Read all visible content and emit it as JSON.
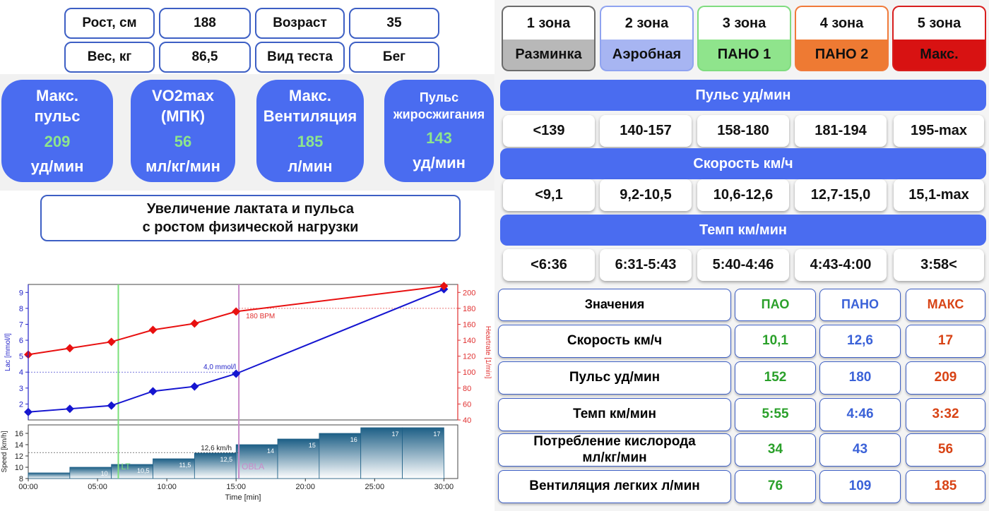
{
  "info": {
    "height_label": "Рост, см",
    "height_value": "188",
    "age_label": "Возраст",
    "age_value": "35",
    "weight_label": "Вес, кг",
    "weight_value": "86,5",
    "test_label": "Вид теста",
    "test_value": "Бег"
  },
  "stats": [
    {
      "title1": "Макс.",
      "title2": "пульс",
      "value": "209",
      "unit": "уд/мин"
    },
    {
      "title1": "VO2max",
      "title2": "(МПК)",
      "value": "56",
      "unit": "мл/кг/мин"
    },
    {
      "title1": "Макс.",
      "title2": "Вентиляция",
      "value": "185",
      "unit": "л/мин"
    },
    {
      "title1": "Пульс",
      "title2": "жиросжигания",
      "value": "143",
      "unit": "уд/мин"
    }
  ],
  "caption": {
    "line1": "Увеличение лактата и пульса",
    "line2": "с ростом физической нагрузки"
  },
  "zones": [
    {
      "label": "1 зона",
      "name": "Разминка",
      "border": "#6b6b6b",
      "fill": "#b8b8b8"
    },
    {
      "label": "2 зона",
      "name": "Аэробная",
      "border": "#8fa3f0",
      "fill": "#a7b5f2"
    },
    {
      "label": "3 зона",
      "name": "ПАНО 1",
      "border": "#7fdc7f",
      "fill": "#8fe48c"
    },
    {
      "label": "4 зона",
      "name": "ПАНО 2",
      "border": "#f07a3a",
      "fill": "#ee7a33"
    },
    {
      "label": "5 зона",
      "name": "Макс.",
      "border": "#d81e1e",
      "fill": "#d81212"
    }
  ],
  "bands": {
    "pulse": {
      "title": "Пульс уд/мин",
      "values": [
        "<139",
        "140-157",
        "158-180",
        "181-194",
        "195-max"
      ]
    },
    "speed": {
      "title": "Скорость км/ч",
      "values": [
        "<9,1",
        "9,2-10,5",
        "10,6-12,6",
        "12,7-15,0",
        "15,1-max"
      ]
    },
    "pace": {
      "title": "Темп км/мин",
      "values": [
        "<6:36",
        "6:31-5:43",
        "5:40-4:46",
        "4:43-4:00",
        "3:58<"
      ]
    }
  },
  "table": {
    "headers": [
      "Значения",
      "ПАО",
      "ПАНО",
      "МАКС"
    ],
    "rows": [
      {
        "label": "Скорость км/ч",
        "pao": "10,1",
        "pano": "12,6",
        "max": "17"
      },
      {
        "label": "Пульс уд/мин",
        "pao": "152",
        "pano": "180",
        "max": "209"
      },
      {
        "label": "Темп км/мин",
        "pao": "5:55",
        "pano": "4:46",
        "max": "3:32"
      },
      {
        "label": "Потребление кислорода мл/кг/мин",
        "pao": "34",
        "pano": "43",
        "max": "56"
      },
      {
        "label": "Вентиляция легких л/мин",
        "pao": "76",
        "pano": "109",
        "max": "185"
      }
    ]
  },
  "chart_data": {
    "type": "line",
    "xlabel": "Time [min]",
    "ylabel_left": "Lac [mmol/l]",
    "ylabel_right": "Heartrate [1/min]",
    "ylabel_speed": "Speed [km/h]",
    "x_ticks": [
      "00:00",
      "05:00",
      "10:00",
      "15:00",
      "20:00",
      "25:00",
      "30:00"
    ],
    "lac_ticks": [
      2,
      3,
      4,
      5,
      6,
      7,
      8,
      9
    ],
    "hr_ticks": [
      40,
      60,
      80,
      100,
      120,
      140,
      160,
      180,
      200
    ],
    "speed_ticks": [
      8,
      10,
      12,
      14,
      16
    ],
    "lac_ylim": [
      1,
      9.5
    ],
    "hr_ylim": [
      40,
      210
    ],
    "speed_ylim": [
      8,
      17.5
    ],
    "xlim": [
      0,
      31
    ],
    "series": [
      {
        "name": "Lac",
        "color": "#1515d0",
        "x": [
          0,
          3,
          6,
          9,
          12,
          15,
          30
        ],
        "y": [
          1.5,
          1.7,
          1.9,
          2.8,
          3.1,
          3.9,
          9.2
        ]
      },
      {
        "name": "Heartrate",
        "color": "#e81010",
        "x": [
          0,
          3,
          6,
          9,
          12,
          15,
          30
        ],
        "y": [
          122,
          130,
          138,
          153,
          161,
          176,
          208
        ]
      }
    ],
    "speed_steps": [
      {
        "start": 0,
        "end": 3,
        "value": 9,
        "label": ""
      },
      {
        "start": 3,
        "end": 6,
        "value": 10,
        "label": "10"
      },
      {
        "start": 6,
        "end": 9,
        "value": 10.5,
        "label": "10,5"
      },
      {
        "start": 9,
        "end": 12,
        "value": 11.5,
        "label": "11,5"
      },
      {
        "start": 12,
        "end": 15,
        "value": 12.5,
        "label": "12,5"
      },
      {
        "start": 15,
        "end": 18,
        "value": 14,
        "label": "14"
      },
      {
        "start": 18,
        "end": 21,
        "value": 15,
        "label": "15"
      },
      {
        "start": 21,
        "end": 24,
        "value": 16,
        "label": "16"
      },
      {
        "start": 24,
        "end": 27,
        "value": 17,
        "label": "17"
      },
      {
        "start": 27,
        "end": 30,
        "value": 17,
        "label": "17"
      }
    ],
    "annotations": {
      "lt": {
        "x": 6.5,
        "label": "LT",
        "color": "#7be07b"
      },
      "obla": {
        "x": 15.2,
        "label": "OBLA",
        "color": "#c98ac9"
      },
      "lac_ref": {
        "value": 4.0,
        "label": "4,0 mmol/l"
      },
      "hr_ref": {
        "value": 180,
        "label": "180 BPM"
      },
      "speed_ref": {
        "value": 12.6,
        "label": "12,6 km/h"
      }
    }
  }
}
